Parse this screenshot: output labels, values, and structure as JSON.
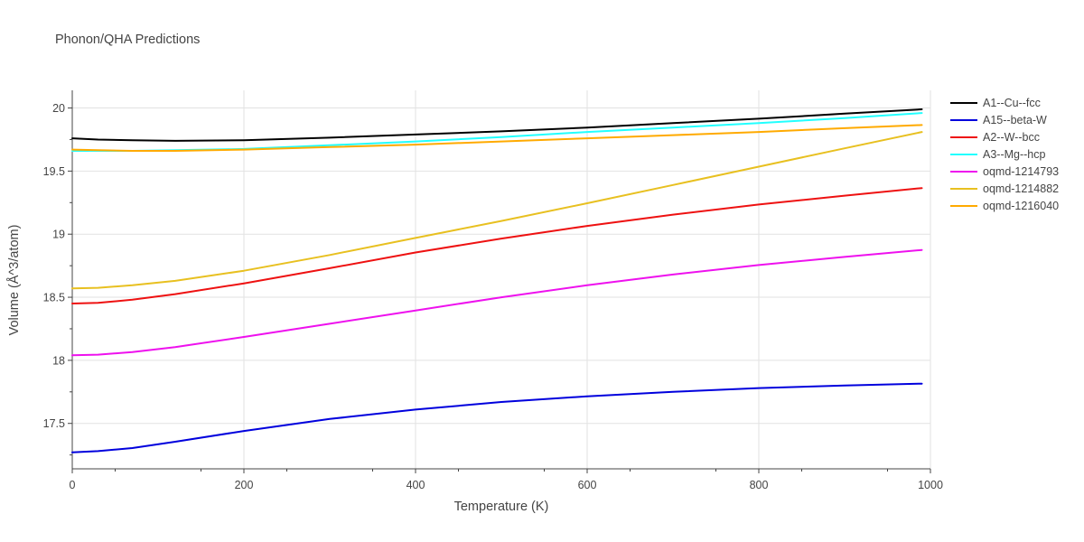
{
  "chart_data": {
    "type": "line",
    "title": "Phonon/QHA Predictions",
    "xlabel": "Temperature (K)",
    "ylabel": "Volume (Å^3/atom)",
    "xlim": [
      0,
      1000
    ],
    "ylim": [
      17.14,
      20.14
    ],
    "x_ticks": [
      0,
      200,
      400,
      600,
      800,
      1000
    ],
    "x_tick_labels": [
      "0",
      "200",
      "400",
      "600",
      "800",
      "1000"
    ],
    "y_ticks": [
      17.5,
      18,
      18.5,
      19,
      19.5,
      20
    ],
    "y_tick_labels": [
      "17.5",
      "18",
      "18.5",
      "19",
      "19.5",
      "20"
    ],
    "grid": true,
    "legend_position": "right",
    "x": [
      0,
      30,
      70,
      120,
      200,
      300,
      400,
      500,
      600,
      700,
      800,
      900,
      990
    ],
    "series": [
      {
        "name": "A1--Cu--fcc",
        "color": "#000000",
        "values": [
          19.76,
          19.75,
          19.745,
          19.74,
          19.745,
          19.765,
          19.79,
          19.815,
          19.845,
          19.88,
          19.915,
          19.955,
          19.99
        ]
      },
      {
        "name": "A15--beta-W",
        "color": "#0000dd",
        "values": [
          17.27,
          17.28,
          17.305,
          17.355,
          17.44,
          17.535,
          17.61,
          17.67,
          17.715,
          17.75,
          17.78,
          17.8,
          17.815
        ]
      },
      {
        "name": "A2--W--bcc",
        "color": "#ee1111",
        "values": [
          18.45,
          18.455,
          18.48,
          18.525,
          18.61,
          18.73,
          18.855,
          18.965,
          19.065,
          19.155,
          19.235,
          19.305,
          19.365
        ]
      },
      {
        "name": "A3--Mg--hcp",
        "color": "#22ffff",
        "values": [
          19.66,
          19.66,
          19.66,
          19.665,
          19.675,
          19.705,
          19.735,
          19.77,
          19.81,
          19.845,
          19.88,
          19.92,
          19.96
        ]
      },
      {
        "name": "oqmd-1214793",
        "color": "#ee11ee",
        "values": [
          18.04,
          18.045,
          18.065,
          18.105,
          18.185,
          18.29,
          18.395,
          18.5,
          18.595,
          18.68,
          18.755,
          18.82,
          18.875
        ]
      },
      {
        "name": "oqmd-1214882",
        "color": "#e8c020",
        "values": [
          18.57,
          18.575,
          18.595,
          18.63,
          18.71,
          18.835,
          18.97,
          19.105,
          19.245,
          19.39,
          19.535,
          19.68,
          19.81
        ]
      },
      {
        "name": "oqmd-1216040",
        "color": "#ffaa00",
        "values": [
          19.67,
          19.665,
          19.66,
          19.66,
          19.67,
          19.69,
          19.71,
          19.735,
          19.76,
          19.785,
          19.81,
          19.84,
          19.865
        ]
      }
    ]
  }
}
